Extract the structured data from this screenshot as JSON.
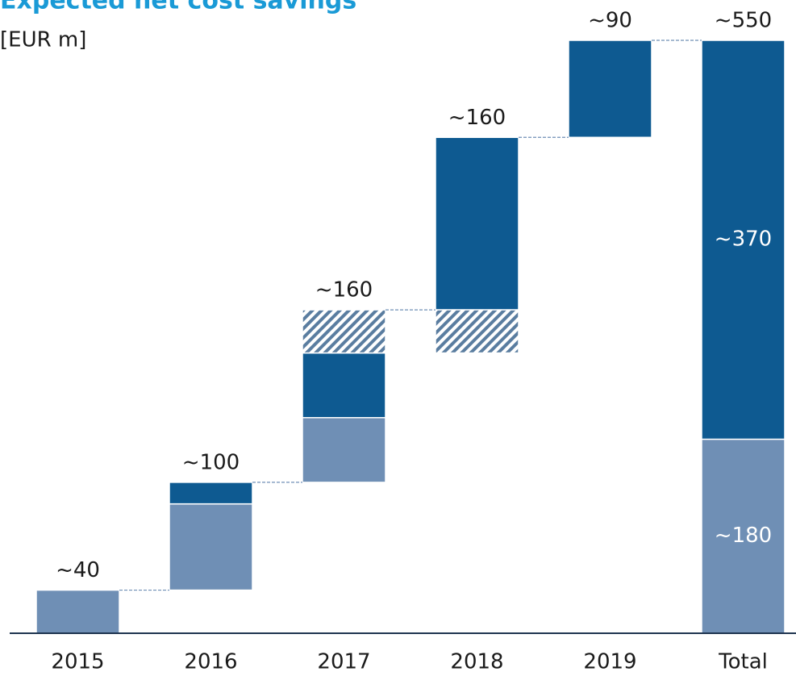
{
  "chart_data": {
    "type": "waterfall",
    "title": "Expected net cost savings",
    "subtitle": "[EUR m]",
    "categories": [
      "2015",
      "2016",
      "2017",
      "2018",
      "2019",
      "Total"
    ],
    "is_total": [
      false,
      false,
      false,
      false,
      false,
      true
    ],
    "series": [
      {
        "color": "#6f8fb5",
        "values": [
          40,
          80,
          60,
          null,
          null,
          180
        ],
        "value_labels": [
          null,
          null,
          null,
          null,
          null,
          "~180"
        ]
      },
      {
        "color": "#0e5a91",
        "values": [
          null,
          20,
          60,
          160,
          90,
          370
        ],
        "value_labels": [
          null,
          null,
          null,
          null,
          null,
          "~370"
        ]
      },
      {
        "color": "#5a7da0",
        "pattern": "hatch",
        "values": [
          null,
          null,
          40,
          -40,
          null,
          null
        ]
      }
    ],
    "totals": {
      "values": [
        40,
        100,
        160,
        160,
        90,
        550
      ],
      "value_labels": [
        "~40",
        "~100",
        "~160",
        "~160",
        "~90",
        "~550"
      ]
    },
    "ylim": [
      0,
      550
    ]
  }
}
